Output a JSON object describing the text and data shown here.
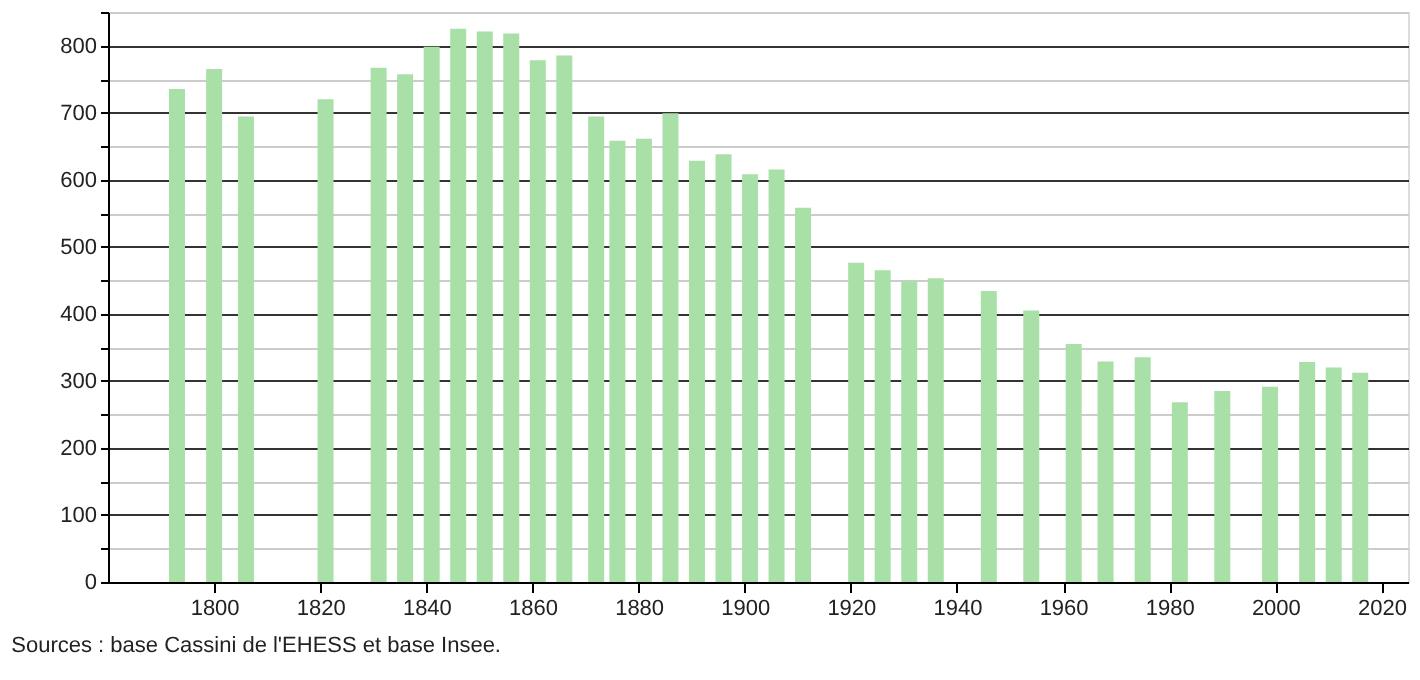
{
  "chart_data": {
    "type": "bar",
    "x": [
      1793,
      1800,
      1806,
      1821,
      1831,
      1836,
      1841,
      1846,
      1851,
      1856,
      1861,
      1866,
      1872,
      1876,
      1881,
      1886,
      1891,
      1896,
      1901,
      1906,
      1911,
      1921,
      1926,
      1931,
      1936,
      1946,
      1954,
      1962,
      1968,
      1975,
      1982,
      1990,
      1999,
      2006,
      2011,
      2016
    ],
    "values": [
      735,
      765,
      694,
      720,
      767,
      757,
      798,
      825,
      821,
      818,
      778,
      785,
      694,
      658,
      661,
      699,
      628,
      638,
      608,
      615,
      558,
      476,
      465,
      449,
      453,
      434,
      405,
      355,
      329,
      335,
      268,
      285,
      291,
      328,
      320,
      312
    ],
    "color": "#a8e0a8",
    "xlim": [
      1780,
      2025
    ],
    "xticks": [
      1800,
      1820,
      1840,
      1860,
      1880,
      1900,
      1920,
      1940,
      1960,
      1980,
      2000,
      2020
    ],
    "ylim": [
      0,
      850
    ],
    "yticks": [
      0,
      {
        "value": 50,
        "label": null
      },
      100,
      {
        "value": 150,
        "label": null
      },
      200,
      {
        "value": 250,
        "label": null
      },
      300,
      {
        "value": 350,
        "label": null
      },
      400,
      {
        "value": 450,
        "label": null
      },
      500,
      {
        "value": 550,
        "label": null
      },
      600,
      {
        "value": 650,
        "label": null
      },
      700,
      {
        "value": 750,
        "label": null
      },
      800,
      {
        "value": 850,
        "label": null
      }
    ],
    "grid": "y",
    "annotations": [
      "Sources : base Cassini de l'EHESS et base Insee."
    ]
  }
}
